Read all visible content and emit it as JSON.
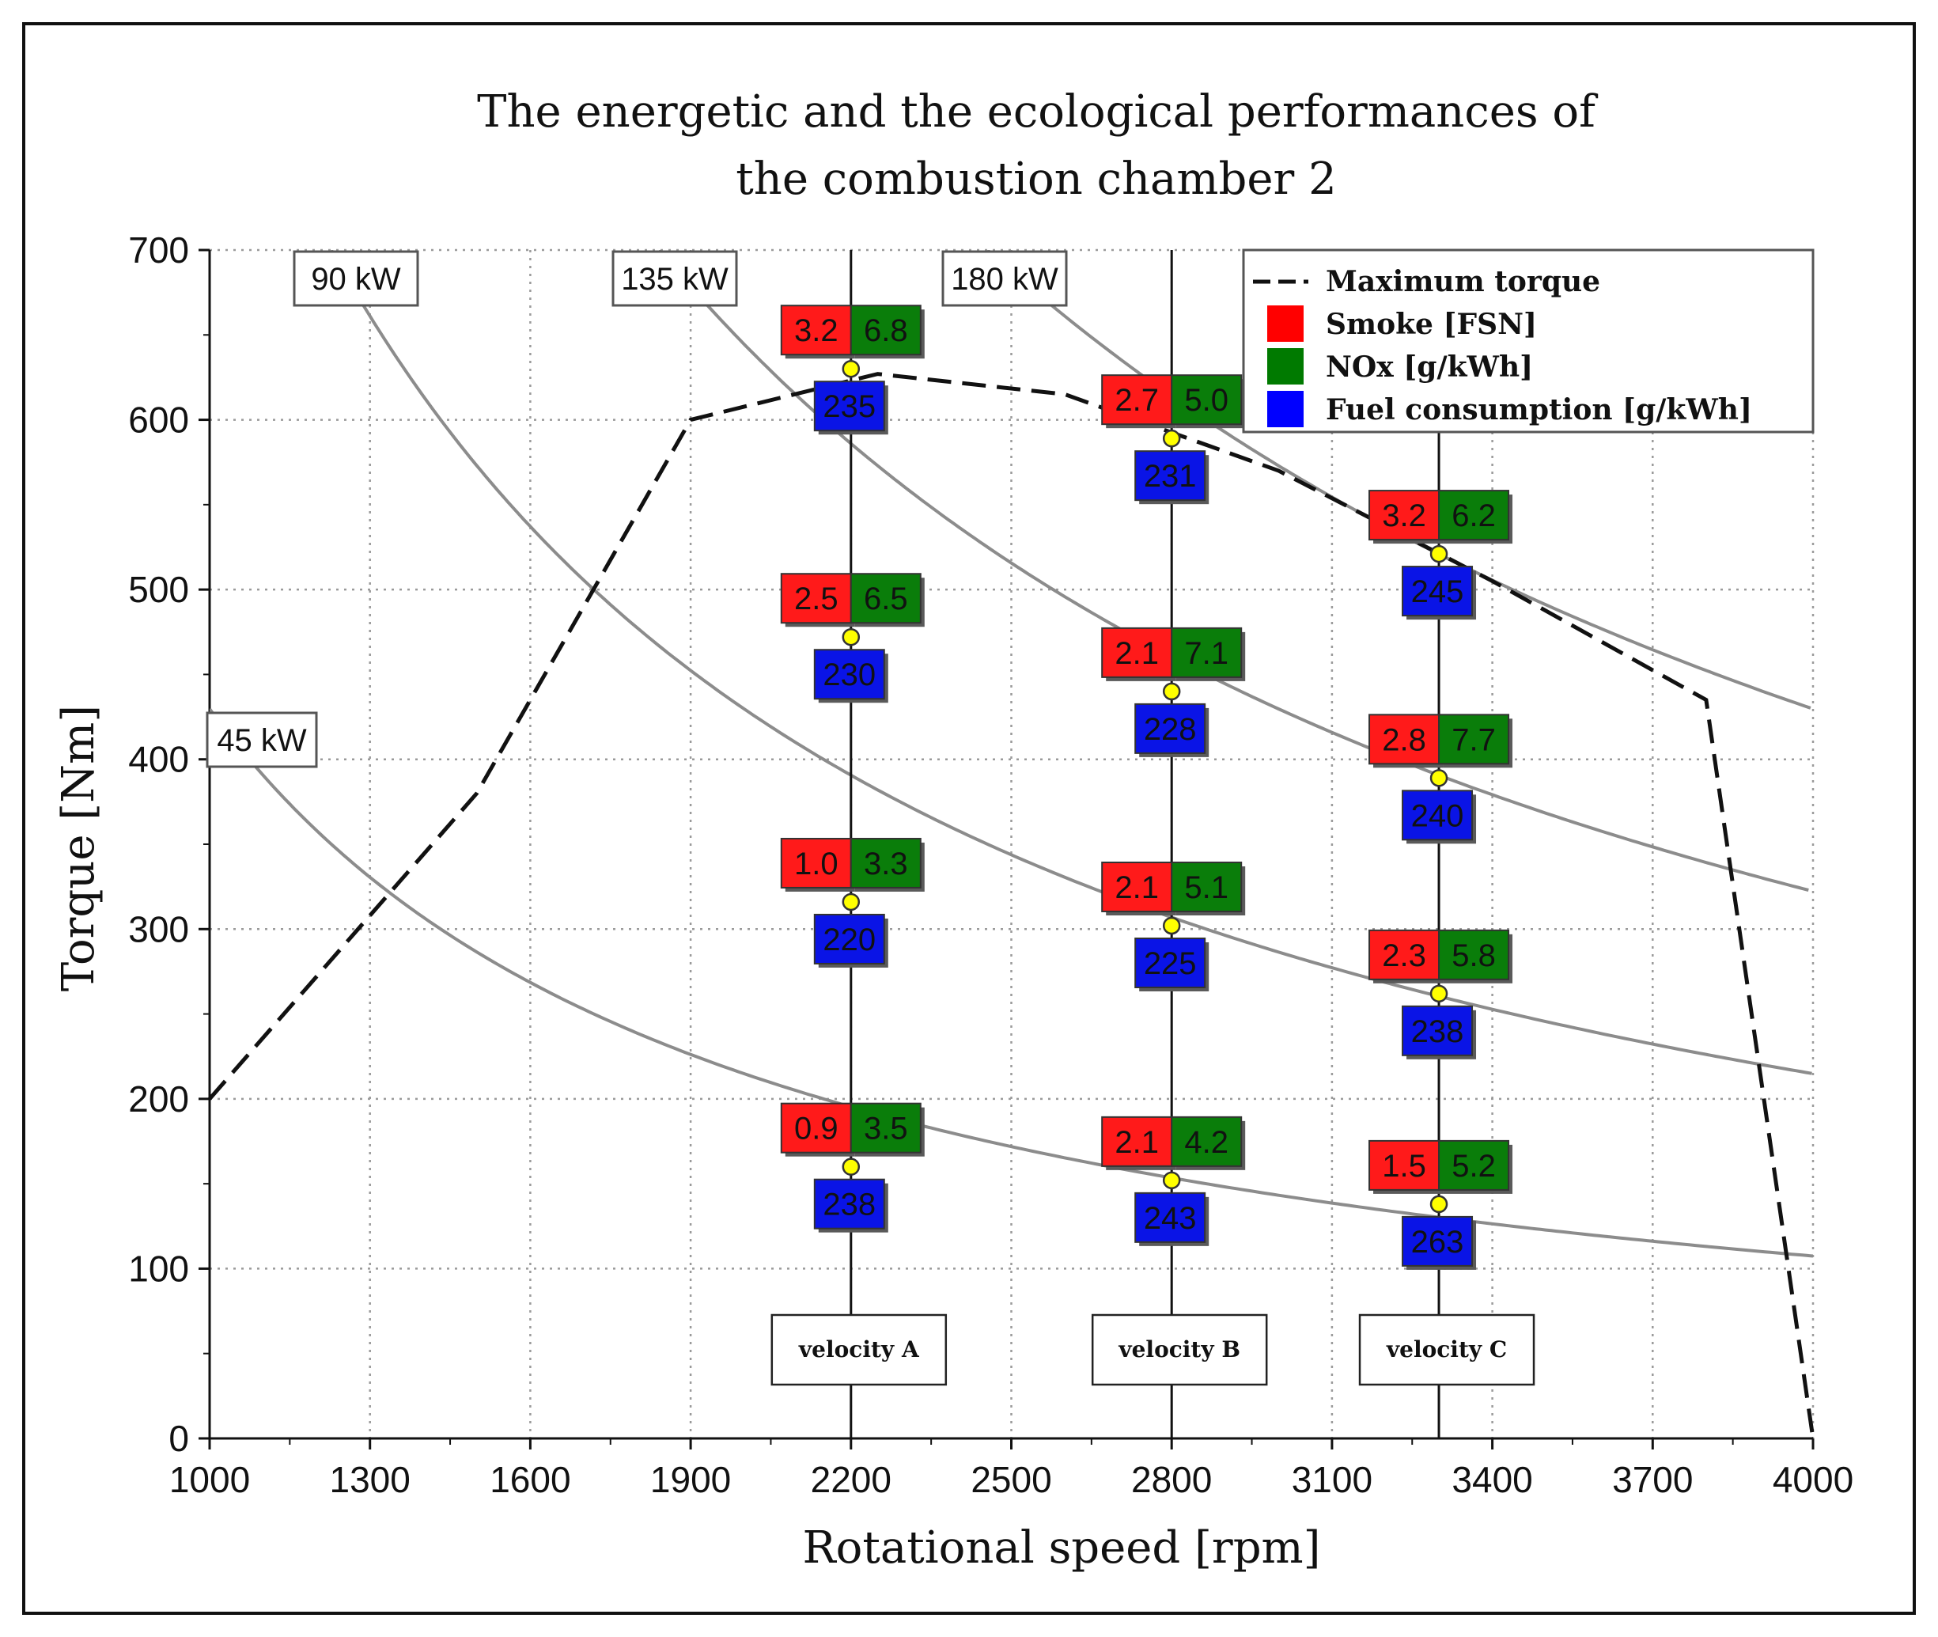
{
  "chart_data": {
    "type": "line",
    "title_lines": [
      "The energetic and the ecological performances of",
      "the combustion chamber 2"
    ],
    "xlabel": "Rotational speed [rpm]",
    "ylabel": "Torque [Nm]",
    "xlim": [
      1000,
      4000
    ],
    "ylim": [
      0,
      700
    ],
    "x_ticks": [
      1000,
      1300,
      1600,
      1900,
      2200,
      2500,
      2800,
      3100,
      3400,
      3700,
      4000
    ],
    "y_ticks": [
      0,
      100,
      200,
      300,
      400,
      500,
      600,
      700
    ],
    "x_tick_labels": [
      "1000",
      "1300",
      "1600",
      "1900",
      "2200",
      "2500",
      "2800",
      "3100",
      "3400",
      "3700",
      "4000"
    ],
    "y_tick_labels": [
      "0",
      "100",
      "200",
      "300",
      "400",
      "500",
      "600",
      "700"
    ],
    "grid": true,
    "max_torque": {
      "name": "Maximum torque",
      "x": [
        1000,
        1500,
        1900,
        2250,
        2600,
        3000,
        3400,
        3800,
        4000
      ],
      "y": [
        200,
        380,
        600,
        627,
        615,
        570,
        505,
        435,
        0
      ]
    },
    "power_curves": [
      {
        "label": "45 kW",
        "kw": 45
      },
      {
        "label": "90 kW",
        "kw": 90
      },
      {
        "label": "135 kW",
        "kw": 135
      },
      {
        "label": "180 kW",
        "kw": 180
      }
    ],
    "velocities": [
      {
        "label": "velocity A",
        "rpm": 2200
      },
      {
        "label": "velocity B",
        "rpm": 2800
      },
      {
        "label": "velocity C",
        "rpm": 3300
      }
    ],
    "points": [
      {
        "rpm": 2200,
        "torque": 630,
        "smoke": "3.2",
        "nox": "6.8",
        "fuel": "235"
      },
      {
        "rpm": 2200,
        "torque": 472,
        "smoke": "2.5",
        "nox": "6.5",
        "fuel": "230"
      },
      {
        "rpm": 2200,
        "torque": 316,
        "smoke": "1.0",
        "nox": "3.3",
        "fuel": "220"
      },
      {
        "rpm": 2200,
        "torque": 160,
        "smoke": "0.9",
        "nox": "3.5",
        "fuel": "238"
      },
      {
        "rpm": 2800,
        "torque": 589,
        "smoke": "2.7",
        "nox": "5.0",
        "fuel": "231"
      },
      {
        "rpm": 2800,
        "torque": 440,
        "smoke": "2.1",
        "nox": "7.1",
        "fuel": "228"
      },
      {
        "rpm": 2800,
        "torque": 302,
        "smoke": "2.1",
        "nox": "5.1",
        "fuel": "225"
      },
      {
        "rpm": 2800,
        "torque": 152,
        "smoke": "2.1",
        "nox": "4.2",
        "fuel": "243"
      },
      {
        "rpm": 3300,
        "torque": 521,
        "smoke": "3.2",
        "nox": "6.2",
        "fuel": "245"
      },
      {
        "rpm": 3300,
        "torque": 389,
        "smoke": "2.8",
        "nox": "7.7",
        "fuel": "240"
      },
      {
        "rpm": 3300,
        "torque": 262,
        "smoke": "2.3",
        "nox": "5.8",
        "fuel": "238"
      },
      {
        "rpm": 3300,
        "torque": 138,
        "smoke": "1.5",
        "nox": "5.2",
        "fuel": "263"
      }
    ],
    "legend": [
      {
        "label": "Maximum torque",
        "kind": "dash"
      },
      {
        "label": "Smoke [FSN]",
        "color": "#ff0000"
      },
      {
        "label": "NOx [g/kWh]",
        "color": "#007a00"
      },
      {
        "label": "Fuel consumption [g/kWh]",
        "color": "#0000ff"
      }
    ],
    "legend_position": "top-right"
  },
  "colors": {
    "smoke": "#ff1a1a",
    "nox": "#0a7d0a",
    "fuel": "#0a14e6",
    "point": "#ffff00",
    "power_curve": "#8c8c8c",
    "grid": "#9a9a9a"
  }
}
